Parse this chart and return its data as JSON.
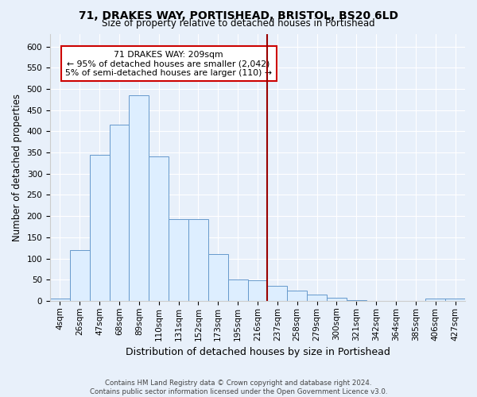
{
  "title": "71, DRAKES WAY, PORTISHEAD, BRISTOL, BS20 6LD",
  "subtitle": "Size of property relative to detached houses in Portishead",
  "xlabel": "Distribution of detached houses by size in Portishead",
  "ylabel": "Number of detached properties",
  "bar_labels": [
    "4sqm",
    "26sqm",
    "47sqm",
    "68sqm",
    "89sqm",
    "110sqm",
    "131sqm",
    "152sqm",
    "173sqm",
    "195sqm",
    "216sqm",
    "237sqm",
    "258sqm",
    "279sqm",
    "300sqm",
    "321sqm",
    "342sqm",
    "364sqm",
    "385sqm",
    "406sqm",
    "427sqm"
  ],
  "bar_values": [
    5,
    120,
    345,
    415,
    485,
    340,
    192,
    192,
    110,
    50,
    48,
    35,
    25,
    15,
    8,
    2,
    0,
    0,
    0,
    5,
    5
  ],
  "bar_color": "#ddeeff",
  "bar_edge_color": "#6699cc",
  "vline_x": 10.5,
  "vline_color": "#990000",
  "annotation_text": "71 DRAKES WAY: 209sqm\n← 95% of detached houses are smaller (2,042)\n5% of semi-detached houses are larger (110) →",
  "annotation_box_color": "#ffffff",
  "annotation_box_edge": "#cc0000",
  "ylim": [
    0,
    630
  ],
  "yticks": [
    0,
    50,
    100,
    150,
    200,
    250,
    300,
    350,
    400,
    450,
    500,
    550,
    600
  ],
  "footer": "Contains HM Land Registry data © Crown copyright and database right 2024.\nContains public sector information licensed under the Open Government Licence v3.0.",
  "bg_color": "#e8f0fa",
  "plot_bg": "#e8f0fa"
}
